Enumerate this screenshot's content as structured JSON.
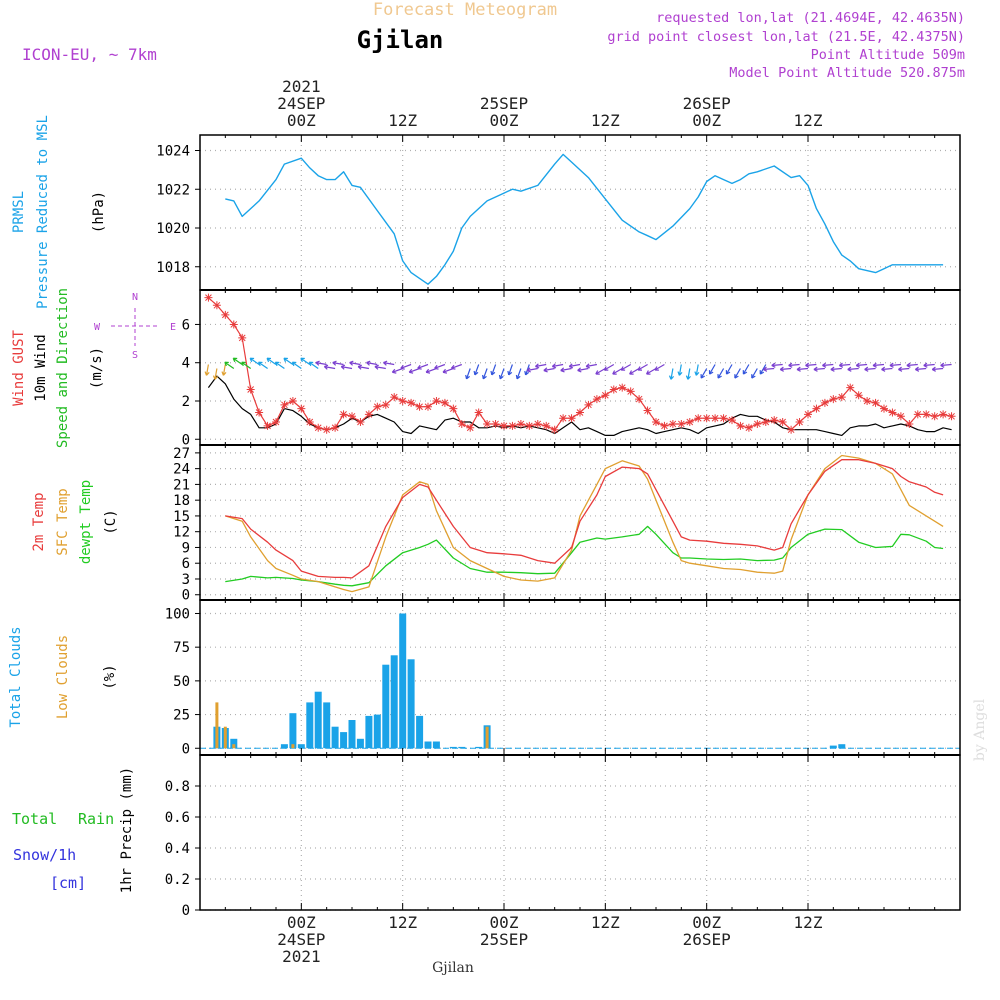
{
  "header": {
    "title_top": "Forecast Meteogram",
    "location": "Gjilan",
    "model": "ICON-EU, ~ 7km",
    "requested": "requested lon,lat (21.4694E, 42.4635N)",
    "grid_point": "grid point closest lon,lat (21.5E, 42.4375N)",
    "point_altitude": "Point Altitude 509m",
    "model_altitude": "Model Point Altitude 520.875m",
    "footer_location": "Gjilan",
    "credit": "by Angel"
  },
  "colors": {
    "pressure": "#1aa3e8",
    "gust": "#e83c3c",
    "wind": "#000000",
    "direction_green": "#22bb22",
    "temp2m": "#e83c3c",
    "sfc": "#e0a030",
    "dewpt": "#22cc22",
    "total_clouds": "#1aa3e8",
    "low_clouds": "#e0a030",
    "rain": "#22bb22",
    "snow": "#3333dd",
    "purple": "#b040d0",
    "title_orange": "#f0c890"
  },
  "time_axis": {
    "top": [
      {
        "lines": [
          "2021",
          "24SEP",
          "00Z"
        ]
      },
      {
        "lines": [
          "12Z"
        ]
      },
      {
        "lines": [
          "25SEP",
          "00Z"
        ]
      },
      {
        "lines": [
          "12Z"
        ]
      },
      {
        "lines": [
          "26SEP",
          "00Z"
        ]
      },
      {
        "lines": [
          "12Z"
        ]
      }
    ],
    "bottom": [
      {
        "lines": [
          "00Z",
          "24SEP",
          "2021"
        ]
      },
      {
        "lines": [
          "12Z"
        ]
      },
      {
        "lines": [
          "00Z",
          "25SEP"
        ]
      },
      {
        "lines": [
          "12Z"
        ]
      },
      {
        "lines": [
          "00Z",
          "26SEP"
        ]
      },
      {
        "lines": [
          "12Z"
        ]
      }
    ]
  },
  "panels": {
    "pressure": {
      "labels": [
        {
          "text": "PRMSL",
          "color": "#1aa3e8"
        },
        {
          "text": "Pressure Reduced to MSL",
          "color": "#1aa3e8"
        },
        {
          "text": "(hPa)",
          "color": "#000000"
        }
      ],
      "ticks": [
        "1018",
        "1020",
        "1022",
        "1024"
      ]
    },
    "wind": {
      "labels": [
        {
          "text": "Wind GUST",
          "color": "#e83c3c"
        },
        {
          "text": "10m Wind",
          "color": "#000000"
        },
        {
          "text": "Speed and Direction",
          "color": "#22bb22"
        },
        {
          "text": "(m/s)",
          "color": "#000000"
        }
      ],
      "ticks": [
        "0",
        "2",
        "4",
        "6"
      ],
      "compass": {
        "n": "N",
        "s": "S",
        "w": "W",
        "e": "E"
      }
    },
    "temp": {
      "labels": [
        {
          "text": "2m Temp",
          "color": "#e83c3c"
        },
        {
          "text": "SFC Temp",
          "color": "#e0a030"
        },
        {
          "text": "dewpt Temp",
          "color": "#22cc22"
        },
        {
          "text": "(C)",
          "color": "#000000"
        }
      ],
      "ticks": [
        "0",
        "3",
        "6",
        "9",
        "12",
        "15",
        "18",
        "21",
        "24",
        "27"
      ]
    },
    "clouds": {
      "labels": [
        {
          "text": "Total Clouds",
          "color": "#1aa3e8"
        },
        {
          "text": "Low Clouds",
          "color": "#e0a030"
        },
        {
          "text": "(%)",
          "color": "#000000"
        }
      ],
      "ticks": [
        "0",
        "25",
        "50",
        "75",
        "100"
      ]
    },
    "precip": {
      "labels": [
        {
          "text": "Total",
          "color": "#22bb22"
        },
        {
          "text": "Rain",
          "color": "#22bb22"
        },
        {
          "text": "Snow/1h",
          "color": "#3333dd"
        },
        {
          "text": "[cm]",
          "color": "#3333dd"
        },
        {
          "text": "1hr Precip (mm)",
          "color": "#000000"
        }
      ],
      "ticks": [
        "0",
        "0.2",
        "0.4",
        "0.6",
        "0.8"
      ]
    }
  },
  "chart_data": [
    {
      "type": "line",
      "title": "PRMSL Pressure Reduced to MSL",
      "ylabel": "(hPa)",
      "ylim": [
        1016.8,
        1024.8
      ],
      "x_hours": [
        -9,
        -8,
        -7,
        -5,
        -3,
        -2,
        0,
        1,
        2,
        3,
        4,
        5,
        6,
        7,
        9,
        11,
        12,
        13,
        14,
        15,
        16,
        17,
        18,
        19,
        20,
        22,
        24,
        25,
        26,
        28,
        30,
        31,
        32,
        34,
        36,
        38,
        40,
        41,
        42,
        44,
        46,
        47,
        48,
        49,
        50,
        51,
        52,
        53,
        54,
        56,
        58,
        59,
        60,
        61,
        62,
        63,
        64,
        65,
        66,
        68,
        69,
        70,
        72,
        74,
        75,
        76
      ],
      "series": [
        {
          "values": [
            1021.5,
            1021.4,
            1020.6,
            1021.4,
            1022.5,
            1023.3,
            1023.6,
            1023.1,
            1022.7,
            1022.5,
            1022.5,
            1022.9,
            1022.2,
            1022.1,
            1020.9,
            1019.7,
            1018.3,
            1017.7,
            1017.4,
            1017.1,
            1017.5,
            1018.1,
            1018.8,
            1020.0,
            1020.6,
            1021.4,
            1021.8,
            1022.0,
            1021.9,
            1022.2,
            1023.3,
            1023.8,
            1023.4,
            1022.6,
            1021.5,
            1020.4,
            1019.8,
            1019.6,
            1019.4,
            1020.1,
            1021.0,
            1021.6,
            1022.4,
            1022.7,
            1022.5,
            1022.3,
            1022.5,
            1022.8,
            1022.9,
            1023.2,
            1022.6,
            1022.7,
            1022.2,
            1021.0,
            1020.2,
            1019.3,
            1018.6,
            1018.3,
            1017.9,
            1017.7,
            1017.9,
            1018.1,
            1018.1,
            1018.1,
            1018.1,
            1018.1
          ]
        }
      ]
    },
    {
      "type": "line",
      "title": "Wind GUST / 10m Wind",
      "ylabel": "(m/s)",
      "ylim": [
        -0.3,
        7.8
      ],
      "x_hours": [
        -11,
        -10,
        -9,
        -8,
        -7,
        -6,
        -5,
        -4,
        -3,
        -2,
        -1,
        0,
        1,
        2,
        3,
        4,
        5,
        6,
        7,
        8,
        9,
        10,
        11,
        12,
        13,
        14,
        15,
        16,
        17,
        18,
        19,
        20,
        21,
        22,
        23,
        24,
        25,
        26,
        27,
        28,
        29,
        30,
        31,
        32,
        33,
        34,
        35,
        36,
        37,
        38,
        39,
        40,
        41,
        42,
        43,
        44,
        45,
        46,
        47,
        48,
        49,
        50,
        51,
        52,
        53,
        54,
        55,
        56,
        57,
        58,
        59,
        60,
        61,
        62,
        63,
        64,
        65,
        66,
        67,
        68,
        69,
        70,
        71,
        72,
        73,
        74,
        75,
        76,
        77
      ],
      "series": [
        {
          "name": "Wind GUST",
          "values": [
            7.4,
            7.0,
            6.5,
            6.0,
            5.3,
            2.6,
            1.4,
            0.7,
            0.9,
            1.8,
            2.0,
            1.6,
            0.9,
            0.6,
            0.5,
            0.6,
            1.3,
            1.2,
            0.9,
            1.3,
            1.7,
            1.8,
            2.2,
            2.0,
            1.9,
            1.7,
            1.7,
            2.0,
            1.9,
            1.6,
            0.8,
            0.6,
            1.4,
            0.8,
            0.8,
            0.7,
            0.7,
            0.8,
            0.7,
            0.8,
            0.7,
            0.5,
            1.1,
            1.1,
            1.4,
            1.8,
            2.1,
            2.3,
            2.6,
            2.7,
            2.5,
            2.1,
            1.5,
            0.9,
            0.7,
            0.8,
            0.8,
            0.9,
            1.1,
            1.1,
            1.1,
            1.1,
            1.0,
            0.7,
            0.6,
            0.8,
            0.9,
            1.0,
            0.9,
            0.5,
            0.9,
            1.3,
            1.6,
            1.9,
            2.1,
            2.2,
            2.7,
            2.3,
            2.0,
            1.9,
            1.6,
            1.4,
            1.2,
            0.8,
            1.3,
            1.3,
            1.2,
            1.3,
            1.2
          ]
        },
        {
          "name": "10m Wind",
          "values": [
            2.7,
            3.3,
            2.9,
            2.1,
            1.6,
            1.3,
            0.6,
            0.6,
            0.8,
            1.6,
            1.5,
            1.2,
            0.8,
            0.6,
            0.5,
            0.6,
            0.8,
            1.1,
            0.9,
            1.2,
            1.3,
            1.1,
            0.9,
            0.4,
            0.3,
            0.7,
            0.6,
            0.5,
            1.0,
            1.1,
            0.9,
            0.9,
            0.6,
            0.6,
            0.7,
            0.6,
            0.7,
            0.6,
            0.7,
            0.6,
            0.5,
            0.3,
            0.6,
            0.9,
            0.5,
            0.6,
            0.4,
            0.2,
            0.2,
            0.4,
            0.5,
            0.6,
            0.5,
            0.3,
            0.4,
            0.5,
            0.6,
            0.5,
            0.3,
            0.6,
            0.7,
            0.8,
            1.1,
            1.3,
            1.2,
            1.2,
            1.0,
            0.9,
            0.6,
            0.5,
            0.5,
            0.5,
            0.5,
            0.4,
            0.3,
            0.2,
            0.6,
            0.7,
            0.7,
            0.8,
            0.6,
            0.7,
            0.8,
            0.7,
            0.5,
            0.4,
            0.4,
            0.6,
            0.5
          ]
        }
      ]
    },
    {
      "type": "line",
      "title": "2m Temp / SFC Temp / dewpt Temp",
      "ylabel": "(C)",
      "ylim": [
        -1,
        28.5
      ],
      "x_hours": [
        -9,
        -7,
        -6,
        -4,
        -3,
        -1,
        0,
        2,
        4,
        5,
        6,
        8,
        10,
        12,
        14,
        15,
        16,
        18,
        20,
        22,
        24,
        26,
        28,
        30,
        32,
        33,
        35,
        36,
        38,
        40,
        41,
        42,
        44,
        45,
        46,
        48,
        50,
        52,
        54,
        56,
        57,
        58,
        60,
        62,
        64,
        66,
        68,
        70,
        71,
        72,
        74,
        75,
        76
      ],
      "series": [
        {
          "name": "2m Temp",
          "values": [
            15,
            14.5,
            12.5,
            10,
            8.5,
            6.5,
            4.5,
            3.5,
            3.3,
            3.3,
            3.2,
            5.5,
            13,
            18.5,
            21,
            20.5,
            18,
            13,
            9,
            8,
            7.8,
            7.5,
            6.5,
            6,
            9,
            14,
            19,
            22.5,
            24.3,
            24,
            23,
            20,
            14,
            11,
            10.4,
            10.2,
            9.8,
            9.6,
            9.3,
            8.5,
            9,
            13.5,
            19,
            23.5,
            25.7,
            25.7,
            25,
            24,
            22.5,
            21.5,
            20.5,
            19.5,
            19
          ]
        },
        {
          "name": "SFC Temp",
          "values": [
            15,
            14,
            11,
            6.5,
            5,
            3.7,
            3,
            2.5,
            1.5,
            1,
            0.6,
            1.5,
            11,
            19,
            21.5,
            21,
            16,
            9,
            6.5,
            5,
            3.5,
            2.8,
            2.6,
            3.2,
            8.5,
            15,
            21,
            24,
            25.5,
            24.5,
            22,
            18,
            10,
            6.5,
            6,
            5.5,
            5,
            4.8,
            4.3,
            4.1,
            4.5,
            10.5,
            19,
            24,
            26.5,
            26,
            25,
            23,
            20,
            17,
            15,
            14,
            13
          ]
        },
        {
          "name": "dewpt Temp",
          "values": [
            2.5,
            3,
            3.5,
            3.2,
            3.3,
            3.1,
            2.8,
            2.5,
            2,
            1.8,
            1.7,
            2.3,
            5.5,
            8,
            9,
            9.6,
            10.4,
            7,
            5,
            4.3,
            4.3,
            4.2,
            4,
            4.1,
            8,
            10,
            10.8,
            10.6,
            11,
            11.5,
            13,
            11.5,
            8,
            7,
            7,
            6.8,
            6.7,
            6.8,
            6.5,
            6.6,
            7,
            9,
            11.5,
            12.5,
            12.4,
            10,
            9,
            9.2,
            11.5,
            11.4,
            10.2,
            9,
            8.8
          ]
        }
      ]
    },
    {
      "type": "bar",
      "title": "Total Clouds / Low Clouds",
      "ylabel": "(%)",
      "ylim": [
        -5,
        110
      ],
      "x_hours": [
        -10,
        -9,
        -8,
        -2,
        -1,
        0,
        1,
        2,
        3,
        4,
        5,
        6,
        7,
        8,
        9,
        10,
        11,
        12,
        13,
        14,
        15,
        16,
        17,
        18,
        19,
        20,
        21,
        22,
        23,
        63,
        64
      ],
      "series": [
        {
          "name": "Total Clouds",
          "values": [
            16,
            15,
            7,
            3,
            26,
            3,
            34,
            42,
            34,
            16,
            12,
            21,
            7,
            24,
            25,
            62,
            69,
            100,
            66,
            24,
            5,
            5,
            0,
            1,
            1,
            0,
            1,
            17,
            0,
            2,
            3
          ]
        },
        {
          "name": "Low Clouds",
          "values": [
            34,
            16,
            3,
            0,
            3,
            0,
            0,
            0,
            0,
            0,
            0,
            0,
            0,
            0,
            0,
            0,
            0,
            0,
            0,
            0,
            0,
            0,
            0,
            0,
            0,
            0,
            0,
            16,
            0,
            0,
            0
          ]
        }
      ]
    },
    {
      "type": "bar",
      "title": "1hr Precip",
      "ylabel": "1hr Precip (mm)",
      "ylim": [
        0,
        1.0
      ],
      "x_hours": [],
      "series": [
        {
          "name": "Total Rain",
          "values": []
        },
        {
          "name": "Snow/1h",
          "values": []
        }
      ]
    }
  ]
}
